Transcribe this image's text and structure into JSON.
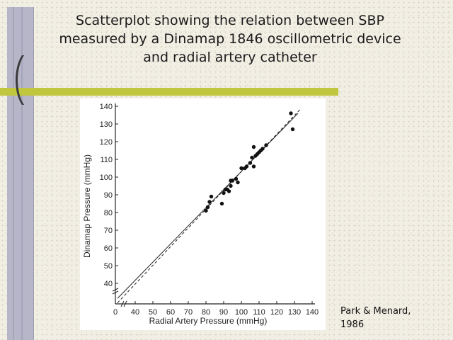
{
  "slide": {
    "title": "Scatterplot showing the relation between SBP measured by a Dinamap 1846 oscillometric device and radial artery catheter",
    "citation_line1": "Park & Menard,",
    "citation_line2": "1986"
  },
  "colors": {
    "accent_line": "#c0c63e",
    "left_bar": "#b6b6c8",
    "background": "#f1eee4"
  },
  "chart_data": {
    "type": "scatter",
    "xlabel": "Radial Artery Pressure (mmHg)",
    "ylabel": "Dinamap Pressure (mmHg)",
    "x_ticks": [
      0,
      40,
      50,
      60,
      70,
      80,
      90,
      100,
      110,
      120,
      130,
      140
    ],
    "y_ticks": [
      40,
      50,
      60,
      70,
      80,
      90,
      100,
      110,
      120,
      130,
      140
    ],
    "axis_break": true,
    "xlim": [
      30,
      140
    ],
    "ylim": [
      30,
      140
    ],
    "points": [
      [
        80,
        81
      ],
      [
        81,
        83
      ],
      [
        82,
        86
      ],
      [
        83,
        89
      ],
      [
        89,
        85
      ],
      [
        90,
        91
      ],
      [
        91,
        93
      ],
      [
        92,
        93
      ],
      [
        93,
        92
      ],
      [
        94,
        95
      ],
      [
        94,
        98
      ],
      [
        95,
        98
      ],
      [
        97,
        99
      ],
      [
        98,
        97
      ],
      [
        100,
        105
      ],
      [
        102,
        105
      ],
      [
        103,
        106
      ],
      [
        105,
        108
      ],
      [
        106,
        111
      ],
      [
        107,
        106
      ],
      [
        107,
        117
      ],
      [
        108,
        112
      ],
      [
        109,
        113
      ],
      [
        110,
        114
      ],
      [
        111,
        115
      ],
      [
        112,
        116
      ],
      [
        114,
        118
      ],
      [
        128,
        136
      ],
      [
        129,
        127
      ]
    ],
    "lines": [
      {
        "style": "solid",
        "x": [
          30,
          132
        ],
        "y": [
          31.5,
          136
        ]
      },
      {
        "style": "dashed",
        "x": [
          30,
          133
        ],
        "y": [
          29,
          138
        ]
      }
    ]
  }
}
